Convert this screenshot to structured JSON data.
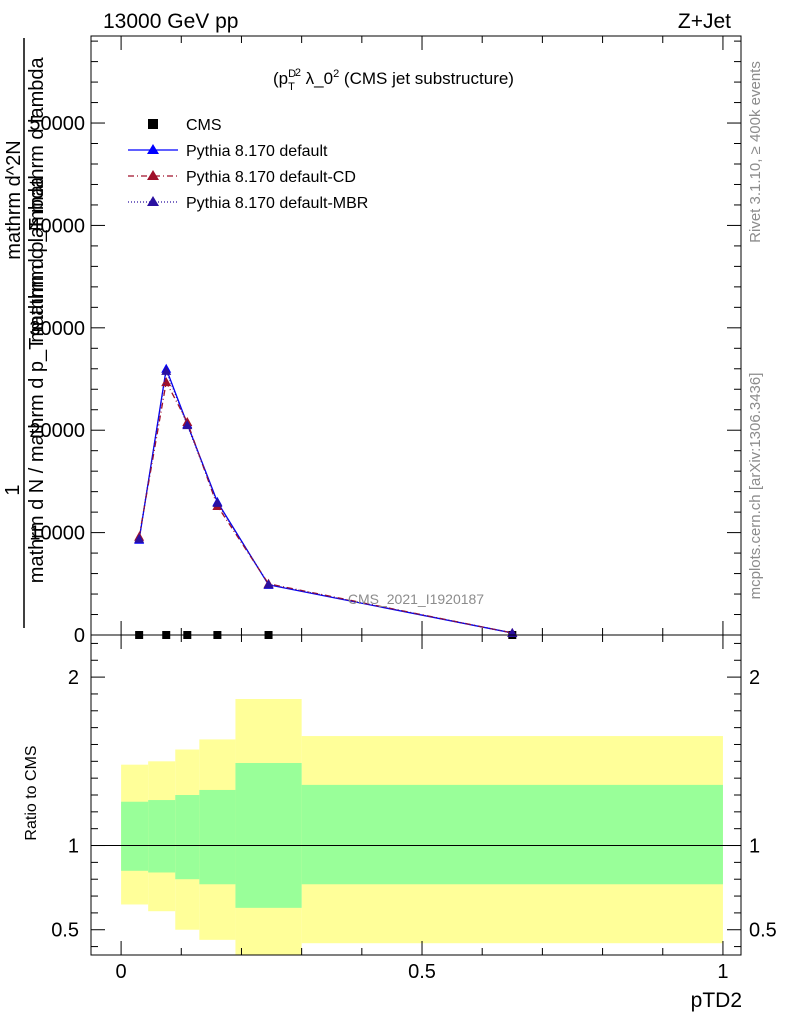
{
  "header": {
    "energy_label": "13000 GeV pp",
    "process_label": "Z+Jet",
    "plot_title": "(p_T^D)^2 λ_0^2 (CMS jet substructure)",
    "watermark": "CMS_2021_I1920187",
    "side_rivet": "Rivet 3.1.10, ≥ 400k events",
    "side_mcplots": "mcplots.cern.ch [arXiv:1306.3436]"
  },
  "chart_data": [
    {
      "type": "line",
      "panel": "main",
      "ylabel_lines": [
        "1",
        "mathrm d N / mathrm d p_T mathrm d lambda",
        "mathrm d^2N",
        "mathrm d p_T mathrm d lambda"
      ],
      "xlim": [
        -0.05,
        1.03
      ],
      "ylim": [
        0,
        58500
      ],
      "yticks": [
        0,
        10000,
        20000,
        30000,
        40000,
        50000
      ],
      "ytick_labels": [
        "0",
        "10000",
        "20000",
        "30000",
        "40000",
        "50000"
      ],
      "legend_position": "top-left",
      "series": [
        {
          "name": "CMS",
          "marker": "square",
          "color": "#000000",
          "line": "none",
          "x": [
            0.03,
            0.075,
            0.11,
            0.16,
            0.245,
            0.65
          ],
          "y": [
            0,
            0,
            0,
            0,
            0,
            0
          ]
        },
        {
          "name": "Pythia 8.170 default",
          "marker": "triangle",
          "color": "#0000ff",
          "line": "solid",
          "x": [
            0.03,
            0.075,
            0.11,
            0.16,
            0.245,
            0.65
          ],
          "y": [
            9300,
            26000,
            20600,
            13000,
            4900,
            200
          ]
        },
        {
          "name": "Pythia 8.170 default-CD",
          "marker": "triangle",
          "color": "#a0102a",
          "line": "dashdot",
          "x": [
            0.03,
            0.075,
            0.11,
            0.16,
            0.245,
            0.65
          ],
          "y": [
            9600,
            24700,
            20800,
            12600,
            5000,
            200
          ]
        },
        {
          "name": "Pythia 8.170 default-MBR",
          "marker": "triangle",
          "color": "#2a10a0",
          "line": "dotted",
          "x": [
            0.03,
            0.075,
            0.11,
            0.16,
            0.245,
            0.65
          ],
          "y": [
            9400,
            25800,
            20500,
            12900,
            4950,
            200
          ]
        }
      ]
    },
    {
      "type": "area",
      "panel": "ratio",
      "ylabel": "Ratio to CMS",
      "xlabel": "pTD2",
      "xlim": [
        -0.05,
        1.03
      ],
      "ylim": [
        0.35,
        2.25
      ],
      "yticks": [
        0.5,
        1,
        2
      ],
      "ytick_labels": [
        "0.5",
        "1",
        "2"
      ],
      "xticks": [
        0,
        0.5,
        1
      ],
      "xtick_labels": [
        "0",
        "0.5",
        "1"
      ],
      "bin_edges": [
        0.0,
        0.045,
        0.09,
        0.13,
        0.19,
        0.3,
        1.0
      ],
      "band_outer": {
        "color": "#ffff99",
        "low": [
          0.65,
          0.61,
          0.5,
          0.44,
          0.33,
          0.42
        ],
        "high": [
          1.48,
          1.5,
          1.57,
          1.63,
          1.87,
          1.65
        ]
      },
      "band_inner": {
        "color": "#99ff99",
        "low": [
          0.85,
          0.84,
          0.8,
          0.77,
          0.63,
          0.77
        ],
        "high": [
          1.26,
          1.27,
          1.3,
          1.33,
          1.49,
          1.36
        ]
      },
      "reference_line": 1
    }
  ]
}
